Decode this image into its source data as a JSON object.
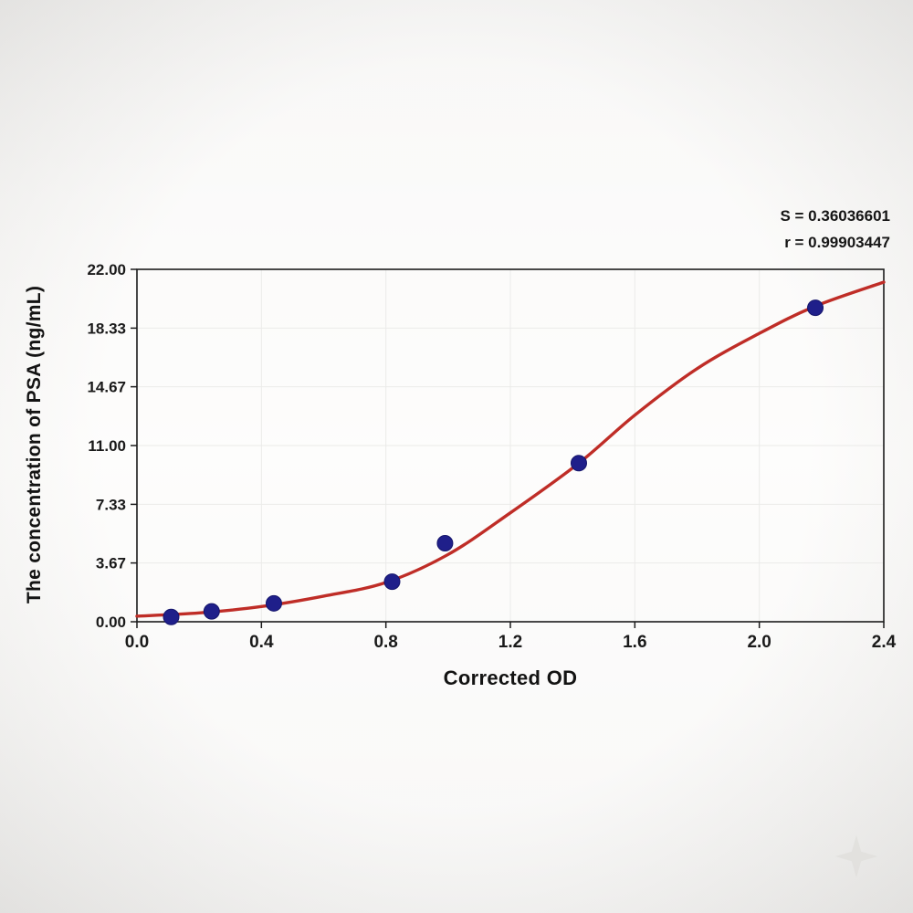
{
  "stats": {
    "s_line": "S = 0.36036601",
    "r_line": "r = 0.99903447"
  },
  "chart_data": {
    "type": "scatter",
    "title": "",
    "xlabel": "Corrected OD",
    "ylabel": "The concentration of PSA (ng/mL)",
    "xlim": [
      0.0,
      2.4
    ],
    "ylim": [
      0.0,
      22.0
    ],
    "grid": true,
    "legend": "none",
    "xtick_labels": [
      "0.0",
      "0.4",
      "0.8",
      "1.2",
      "1.6",
      "2.0",
      "2.4"
    ],
    "xtick_values": [
      0.0,
      0.4,
      0.8,
      1.2,
      1.6,
      2.0,
      2.4
    ],
    "ytick_labels": [
      "0.00",
      "3.67",
      "7.33",
      "11.00",
      "14.67",
      "18.33",
      "22.00"
    ],
    "ytick_values": [
      0.0,
      3.67,
      7.33,
      11.0,
      14.67,
      18.33,
      22.0
    ],
    "series": [
      {
        "name": "standard-points",
        "type": "scatter",
        "color": "#1f1f8a",
        "points": [
          {
            "x": 0.11,
            "y": 0.3
          },
          {
            "x": 0.24,
            "y": 0.65
          },
          {
            "x": 0.44,
            "y": 1.15
          },
          {
            "x": 0.82,
            "y": 2.5
          },
          {
            "x": 0.99,
            "y": 4.9
          },
          {
            "x": 1.42,
            "y": 9.9
          },
          {
            "x": 2.18,
            "y": 19.6
          }
        ]
      }
    ],
    "fit_curve": {
      "name": "sigmoid-fit",
      "type": "4PL-sigmoid",
      "color": "#bf2d27",
      "points": [
        [
          0.0,
          0.35
        ],
        [
          0.2,
          0.55
        ],
        [
          0.4,
          0.95
        ],
        [
          0.6,
          1.6
        ],
        [
          0.8,
          2.45
        ],
        [
          1.0,
          4.2
        ],
        [
          1.2,
          6.8
        ],
        [
          1.42,
          9.9
        ],
        [
          1.6,
          12.9
        ],
        [
          1.8,
          15.8
        ],
        [
          2.0,
          18.0
        ],
        [
          2.18,
          19.7
        ],
        [
          2.4,
          21.2
        ]
      ]
    },
    "stats": {
      "S": 0.36036601,
      "r": 0.99903447
    }
  }
}
